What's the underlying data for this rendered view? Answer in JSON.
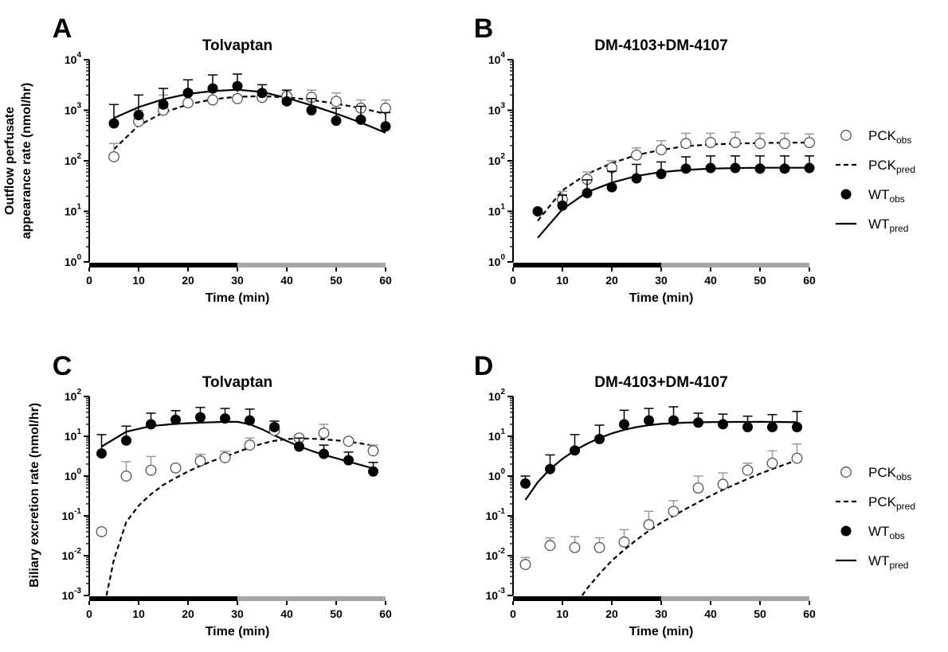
{
  "chart_data": [
    {
      "panel": "A",
      "title": "Tolvaptan",
      "type": "scatter",
      "xlabel": "Time (min)",
      "ylabel": "Outflow perfusate appearance rate (nmol/hr)",
      "yscale": "log",
      "xlim": [
        0,
        60
      ],
      "ylim_exp": [
        0,
        4
      ],
      "xticks": [
        "0",
        "10",
        "20",
        "30",
        "40",
        "50",
        "60"
      ],
      "yticks": [
        {
          "base": "10",
          "exp": "0"
        },
        {
          "base": "10",
          "exp": "1"
        },
        {
          "base": "10",
          "exp": "2"
        },
        {
          "base": "10",
          "exp": "3"
        },
        {
          "base": "10",
          "exp": "4"
        }
      ],
      "phase_bar": [
        {
          "from": 0,
          "to": 30,
          "color": "#000000"
        },
        {
          "from": 30,
          "to": 60,
          "color": "#a6a6a6"
        }
      ],
      "series": [
        {
          "name": "PCK_obs",
          "style": "open",
          "x": [
            5,
            10,
            15,
            20,
            25,
            30,
            35,
            40,
            45,
            50,
            55,
            60
          ],
          "y": [
            120,
            600,
            1000,
            1400,
            1600,
            1700,
            1800,
            1900,
            1800,
            1500,
            1100,
            1100
          ],
          "err": [
            220,
            1000,
            2000,
            2500,
            3000,
            3000,
            2400,
            2500,
            2500,
            2200,
            1600,
            1600
          ]
        },
        {
          "name": "PCK_pred",
          "style": "dashed",
          "x": [
            5,
            10,
            15,
            20,
            25,
            30,
            35,
            40,
            45,
            50,
            55,
            60
          ],
          "y": [
            170,
            500,
            900,
            1300,
            1650,
            1850,
            1900,
            1800,
            1600,
            1350,
            1100,
            850
          ]
        },
        {
          "name": "WT_obs",
          "style": "filled",
          "x": [
            5,
            10,
            15,
            20,
            25,
            30,
            35,
            40,
            45,
            50,
            55,
            60
          ],
          "y": [
            550,
            800,
            1300,
            2200,
            2700,
            3000,
            2200,
            1500,
            1000,
            620,
            650,
            480
          ],
          "err": [
            1300,
            2000,
            2700,
            4000,
            5000,
            5200,
            3200,
            2500,
            1700,
            1100,
            1200,
            900
          ]
        },
        {
          "name": "WT_pred",
          "style": "solid",
          "x": [
            5,
            10,
            15,
            20,
            25,
            30,
            35,
            40,
            45,
            50,
            55,
            60
          ],
          "y": [
            700,
            1150,
            1650,
            2100,
            2400,
            2550,
            2300,
            1750,
            1250,
            860,
            570,
            360
          ]
        }
      ]
    },
    {
      "panel": "B",
      "title": "DM-4103+DM-4107",
      "type": "scatter",
      "xlabel": "Time (min)",
      "ylabel": "",
      "yscale": "log",
      "xlim": [
        0,
        60
      ],
      "ylim_exp": [
        0,
        4
      ],
      "xticks": [
        "0",
        "10",
        "20",
        "30",
        "40",
        "50",
        "60"
      ],
      "yticks": [
        {
          "base": "10",
          "exp": "0"
        },
        {
          "base": "10",
          "exp": "1"
        },
        {
          "base": "10",
          "exp": "2"
        },
        {
          "base": "10",
          "exp": "3"
        },
        {
          "base": "10",
          "exp": "4"
        }
      ],
      "phase_bar": [
        {
          "from": 0,
          "to": 30,
          "color": "#000000"
        },
        {
          "from": 30,
          "to": 60,
          "color": "#a6a6a6"
        }
      ],
      "series": [
        {
          "name": "PCK_obs",
          "style": "open",
          "x": [
            10,
            15,
            20,
            25,
            30,
            35,
            40,
            45,
            50,
            55,
            60
          ],
          "y": [
            17,
            43,
            73,
            130,
            165,
            220,
            230,
            230,
            220,
            220,
            230
          ],
          "err": [
            25,
            60,
            100,
            180,
            250,
            350,
            350,
            370,
            350,
            350,
            340
          ]
        },
        {
          "name": "PCK_pred",
          "style": "dashed",
          "x": [
            5,
            10,
            15,
            20,
            25,
            30,
            35,
            40,
            45,
            50,
            55,
            60
          ],
          "y": [
            6.5,
            26,
            55,
            90,
            130,
            165,
            195,
            210,
            220,
            225,
            228,
            230
          ]
        },
        {
          "name": "WT_obs",
          "style": "filled",
          "x": [
            5,
            10,
            15,
            20,
            25,
            30,
            35,
            40,
            45,
            50,
            55,
            60
          ],
          "y": [
            10,
            13,
            23,
            30,
            45,
            55,
            70,
            72,
            72,
            70,
            70,
            72
          ],
          "err": [
            10,
            21,
            42,
            62,
            85,
            95,
            120,
            125,
            125,
            125,
            125,
            125
          ]
        },
        {
          "name": "WT_pred",
          "style": "solid",
          "x": [
            5,
            10,
            15,
            20,
            25,
            30,
            35,
            40,
            45,
            50,
            55,
            60
          ],
          "y": [
            3,
            11,
            24,
            37,
            50,
            60,
            66,
            70,
            72,
            73,
            73,
            73
          ]
        }
      ]
    },
    {
      "panel": "C",
      "title": "Tolvaptan",
      "type": "scatter",
      "xlabel": "Time (min)",
      "ylabel": "Biliary excretion rate (nmol/hr)",
      "yscale": "log",
      "xlim": [
        0,
        60
      ],
      "ylim_exp": [
        -3,
        2
      ],
      "xticks": [
        "0",
        "10",
        "20",
        "30",
        "40",
        "50",
        "60"
      ],
      "yticks": [
        {
          "base": "10",
          "exp": "-3"
        },
        {
          "base": "10",
          "exp": "-2"
        },
        {
          "base": "10",
          "exp": "-1"
        },
        {
          "base": "10",
          "exp": "0"
        },
        {
          "base": "10",
          "exp": "1"
        },
        {
          "base": "10",
          "exp": "2"
        }
      ],
      "phase_bar": [
        {
          "from": 0,
          "to": 30,
          "color": "#000000"
        },
        {
          "from": 30,
          "to": 60,
          "color": "#a6a6a6"
        }
      ],
      "series": [
        {
          "name": "PCK_obs",
          "style": "open",
          "x": [
            2.5,
            7.5,
            12.5,
            17.5,
            22.5,
            27.5,
            32.5,
            37.5,
            42.5,
            47.5,
            52.5,
            57.5
          ],
          "y": [
            0.04,
            1.0,
            1.4,
            1.6,
            2.4,
            2.9,
            6.0,
            14,
            9,
            12,
            7.5,
            4.3
          ],
          "err": [
            0.04,
            2.3,
            3.1,
            1.9,
            3.5,
            4.2,
            9,
            20,
            11,
            20,
            9,
            6
          ]
        },
        {
          "name": "PCK_pred",
          "style": "dashed",
          "x": [
            3.5,
            5,
            7.5,
            10,
            12.5,
            15,
            17.5,
            20,
            22.5,
            25,
            27.5,
            30,
            32.5,
            35,
            37.5,
            40,
            42.5,
            45,
            47.5,
            50,
            52.5,
            55,
            57.5
          ],
          "y": [
            0.001,
            0.008,
            0.07,
            0.18,
            0.35,
            0.6,
            0.9,
            1.3,
            1.8,
            2.4,
            3.1,
            4.0,
            5.2,
            6.5,
            7.7,
            8.5,
            8.8,
            8.7,
            8.4,
            7.9,
            7.3,
            6.6,
            5.8
          ]
        },
        {
          "name": "WT_obs",
          "style": "filled",
          "x": [
            2.5,
            7.5,
            12.5,
            17.5,
            22.5,
            27.5,
            32.5,
            37.5,
            42.5,
            47.5,
            52.5,
            57.5
          ],
          "y": [
            3.7,
            7.8,
            20,
            26,
            30,
            28,
            25,
            17,
            5.5,
            3.6,
            2.5,
            1.3
          ],
          "err": [
            11,
            18,
            38,
            44,
            53,
            50,
            48,
            24,
            9,
            6,
            4,
            2.2
          ]
        },
        {
          "name": "WT_pred",
          "style": "solid",
          "x": [
            2.5,
            7.5,
            12.5,
            17.5,
            22.5,
            27.5,
            30,
            32.5,
            35,
            37.5,
            40,
            42.5,
            45,
            47.5,
            50,
            52.5,
            55,
            57.5
          ],
          "y": [
            5.5,
            13,
            18,
            20.5,
            22,
            23,
            23,
            20,
            15,
            10.5,
            7.6,
            5.6,
            4.3,
            3.4,
            2.8,
            2.3,
            1.9,
            1.55
          ]
        }
      ]
    },
    {
      "panel": "D",
      "title": "DM-4103+DM-4107",
      "type": "scatter",
      "xlabel": "Time (min)",
      "ylabel": "",
      "yscale": "log",
      "xlim": [
        0,
        60
      ],
      "ylim_exp": [
        -3,
        2
      ],
      "xticks": [
        "0",
        "10",
        "20",
        "30",
        "40",
        "50",
        "60"
      ],
      "yticks": [
        {
          "base": "10",
          "exp": "-3"
        },
        {
          "base": "10",
          "exp": "-2"
        },
        {
          "base": "10",
          "exp": "-1"
        },
        {
          "base": "10",
          "exp": "0"
        },
        {
          "base": "10",
          "exp": "1"
        },
        {
          "base": "10",
          "exp": "2"
        }
      ],
      "phase_bar": [
        {
          "from": 0,
          "to": 30,
          "color": "#000000"
        },
        {
          "from": 30,
          "to": 60,
          "color": "#a6a6a6"
        }
      ],
      "series": [
        {
          "name": "PCK_obs",
          "style": "open",
          "x": [
            2.5,
            7.5,
            12.5,
            17.5,
            22.5,
            27.5,
            32.5,
            37.5,
            42.5,
            47.5,
            52.5,
            57.5
          ],
          "y": [
            0.006,
            0.018,
            0.016,
            0.016,
            0.022,
            0.06,
            0.13,
            0.5,
            0.62,
            1.4,
            2.1,
            2.8
          ],
          "err": [
            0.009,
            0.028,
            0.03,
            0.028,
            0.045,
            0.13,
            0.24,
            1.0,
            1.2,
            2.1,
            4.3,
            6.4
          ]
        },
        {
          "name": "PCK_pred",
          "style": "dashed",
          "x": [
            14,
            15,
            17.5,
            20,
            22.5,
            25,
            27.5,
            30,
            32.5,
            35,
            37.5,
            40,
            42.5,
            45,
            47.5,
            50,
            52.5,
            55,
            57.5
          ],
          "y": [
            0.001,
            0.0015,
            0.0035,
            0.0075,
            0.014,
            0.025,
            0.042,
            0.068,
            0.1,
            0.15,
            0.22,
            0.32,
            0.45,
            0.62,
            0.85,
            1.15,
            1.5,
            1.95,
            2.5
          ]
        },
        {
          "name": "WT_obs",
          "style": "filled",
          "x": [
            2.5,
            7.5,
            12.5,
            17.5,
            22.5,
            27.5,
            32.5,
            37.5,
            42.5,
            47.5,
            52.5,
            57.5
          ],
          "y": [
            0.65,
            1.5,
            4.4,
            8.5,
            20,
            25,
            25,
            22,
            20,
            17,
            17,
            17
          ],
          "err": [
            1.0,
            3.4,
            11,
            19,
            45,
            50,
            55,
            38,
            36,
            32,
            35,
            42
          ]
        },
        {
          "name": "WT_pred",
          "style": "solid",
          "x": [
            2.5,
            5,
            7.5,
            10,
            12.5,
            15,
            17.5,
            20,
            22.5,
            25,
            27.5,
            30,
            35,
            40,
            45,
            50,
            55,
            57.5
          ],
          "y": [
            0.25,
            0.7,
            1.5,
            2.7,
            4.4,
            6.5,
            9,
            11.8,
            14.5,
            17,
            19,
            20.5,
            22,
            22.7,
            22.9,
            23,
            22.8,
            22.5
          ]
        }
      ]
    }
  ],
  "legends": [
    {
      "items": [
        {
          "symbol": "open",
          "label": "PCK",
          "sub": "obs"
        },
        {
          "symbol": "dashed",
          "label": "PCK",
          "sub": "pred"
        },
        {
          "symbol": "filled",
          "label": "WT",
          "sub": "obs"
        },
        {
          "symbol": "solid",
          "label": "WT",
          "sub": "pred"
        }
      ]
    },
    {
      "items": [
        {
          "symbol": "open",
          "label": "PCK",
          "sub": "obs"
        },
        {
          "symbol": "dashed",
          "label": "PCK",
          "sub": "pred"
        },
        {
          "symbol": "filled",
          "label": "WT",
          "sub": "obs"
        },
        {
          "symbol": "solid",
          "label": "WT",
          "sub": "pred"
        }
      ]
    }
  ],
  "colors": {
    "ink": "#000000",
    "open_marker_stroke": "#555555",
    "error_bar_grey": "#9a9a9a",
    "phase_grey": "#a6a6a6"
  }
}
